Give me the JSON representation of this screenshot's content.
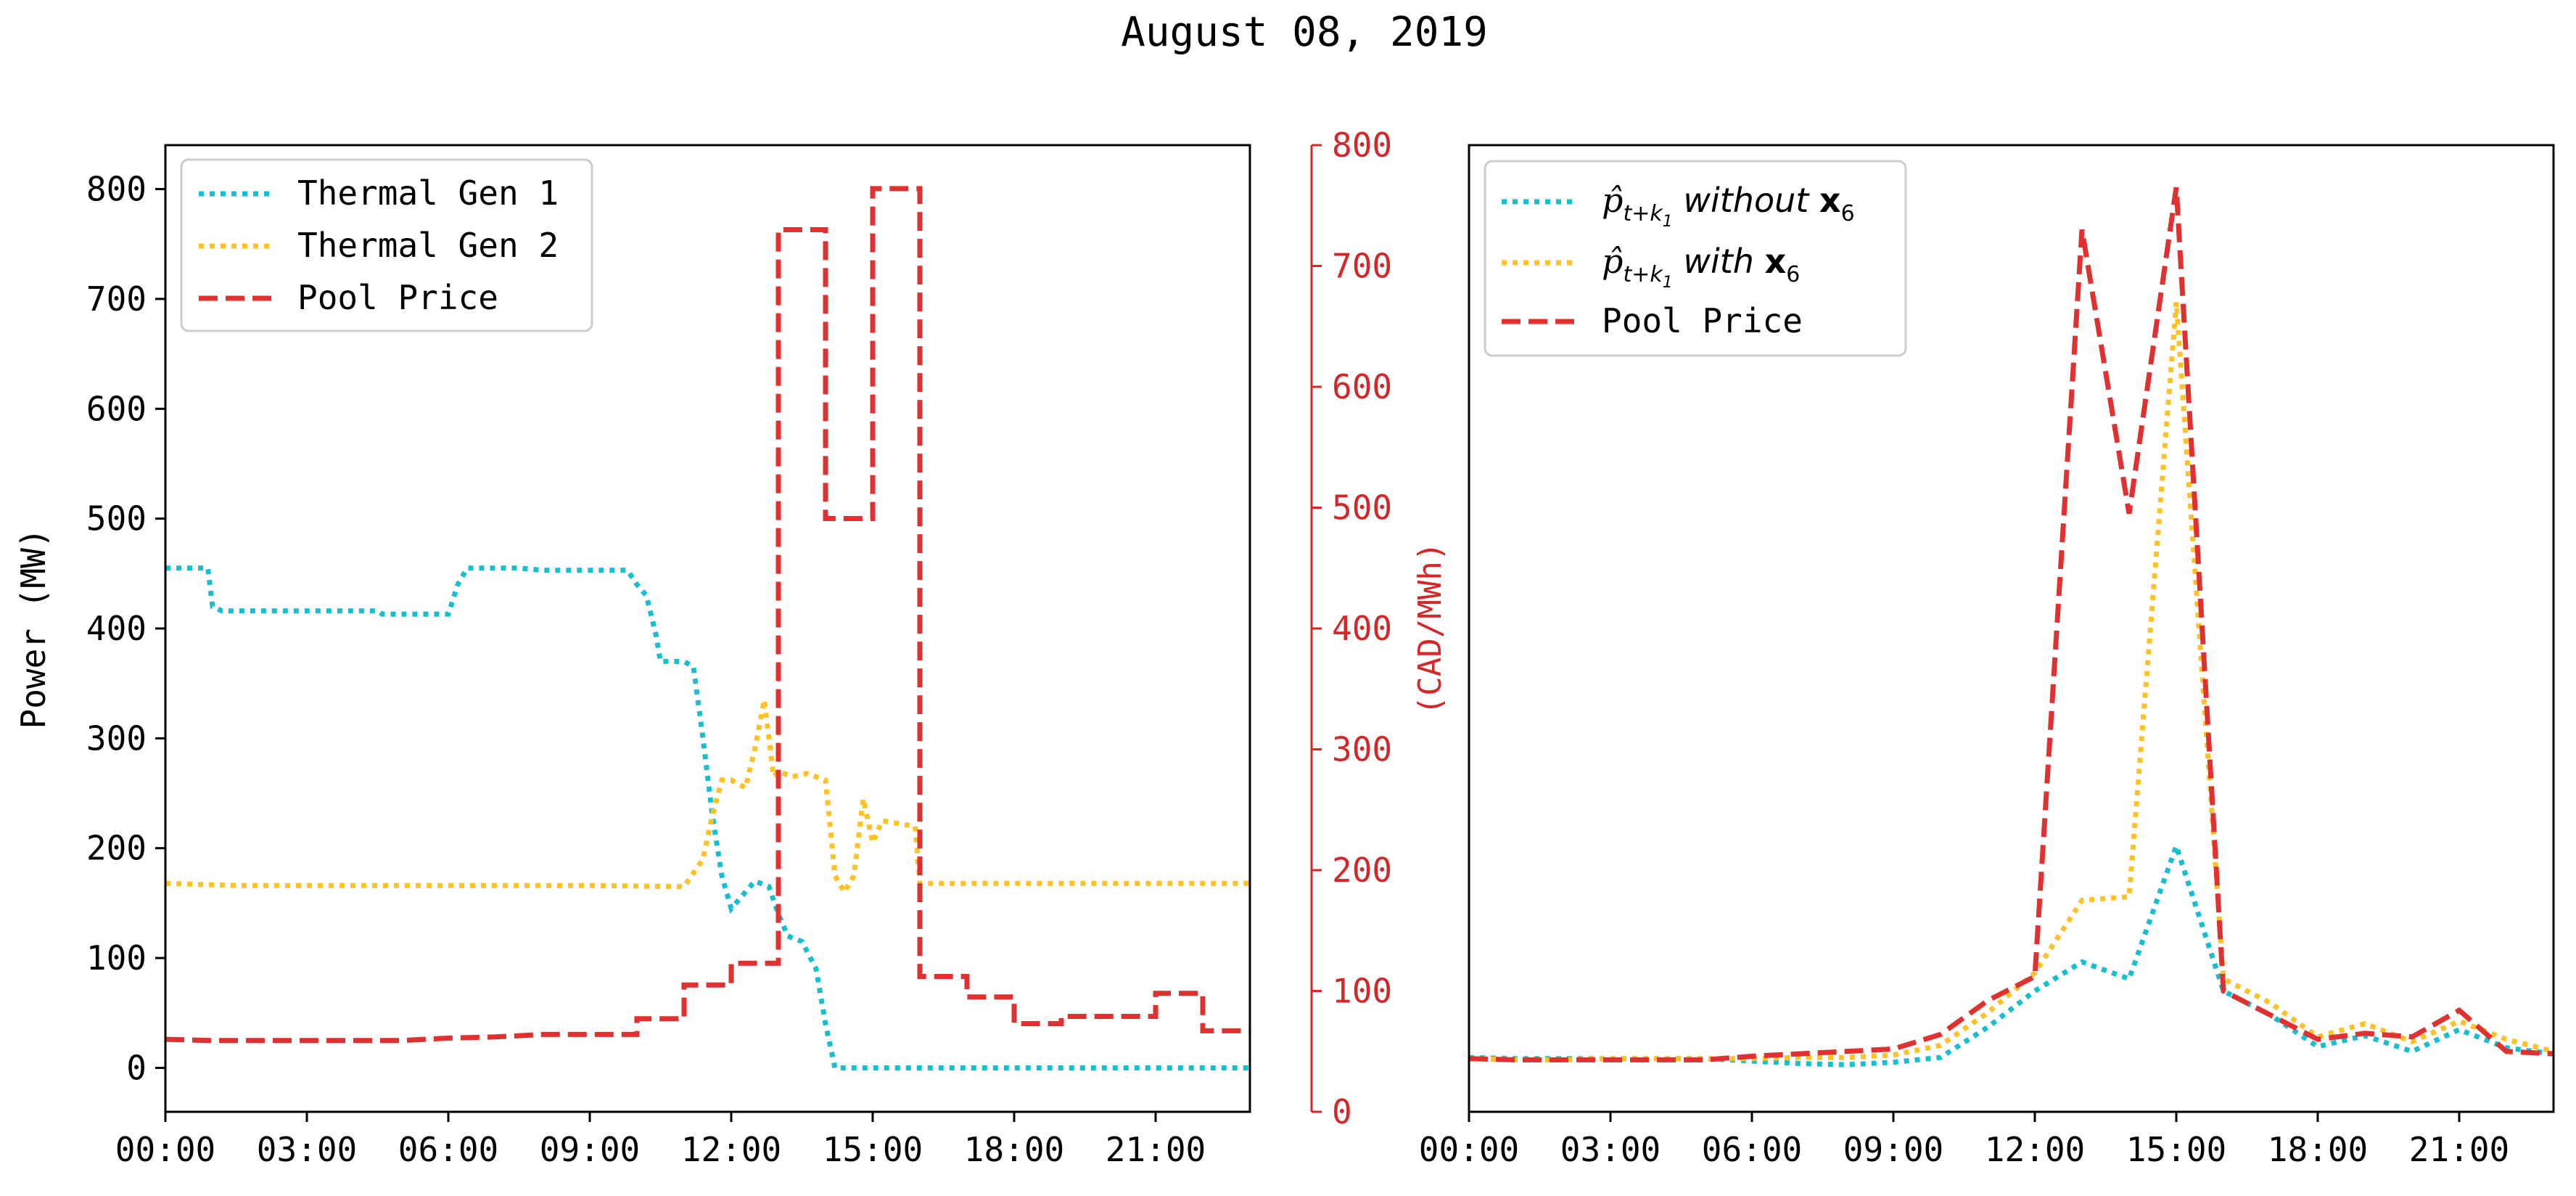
{
  "figure": {
    "title": "August 08, 2019"
  },
  "colors": {
    "teal": "#17becf",
    "gold": "#ffc125",
    "red": "#e03030",
    "axis_red": "#d62728",
    "black": "#000000"
  },
  "chart_data": [
    {
      "type": "line",
      "panel": "left",
      "xlabel": "",
      "ylabel": "Power (MW)",
      "ylabel_right": "(CAD/MWh)",
      "xlim": [
        0,
        23
      ],
      "ylim": [
        -40,
        840
      ],
      "ylim_right": [
        0,
        800
      ],
      "x_ticks": [
        0,
        3,
        6,
        9,
        12,
        15,
        18,
        21
      ],
      "x_tick_labels": [
        "00:00",
        "03:00",
        "06:00",
        "09:00",
        "12:00",
        "15:00",
        "18:00",
        "21:00"
      ],
      "y_ticks": [
        0,
        100,
        200,
        300,
        400,
        500,
        600,
        700,
        800
      ],
      "y_tick_labels": [
        "0",
        "100",
        "200",
        "300",
        "400",
        "500",
        "600",
        "700",
        "800"
      ],
      "y_right_ticks": [
        0,
        100,
        200,
        300,
        400,
        500,
        600,
        700,
        800
      ],
      "y_right_tick_labels": [
        "0",
        "100",
        "200",
        "300",
        "400",
        "500",
        "600",
        "700",
        "800"
      ],
      "legend_position": "top-left",
      "series": [
        {
          "name": "Thermal Gen 1",
          "style": "dotted",
          "color": "#17becf",
          "axis": "left",
          "x": [
            0,
            0.9,
            1.0,
            1.2,
            4.5,
            4.6,
            6.0,
            6.2,
            6.4,
            7.5,
            8.0,
            9.8,
            10.0,
            10.2,
            10.4,
            10.5,
            11.0,
            11.2,
            11.4,
            11.6,
            11.8,
            12.0,
            12.2,
            12.5,
            12.8,
            13.0,
            13.2,
            13.5,
            13.8,
            14.0,
            14.2,
            15.0,
            18.0,
            23.0
          ],
          "values": [
            455,
            455,
            420,
            416,
            416,
            413,
            413,
            440,
            455,
            455,
            453,
            453,
            440,
            430,
            395,
            370,
            370,
            365,
            300,
            230,
            175,
            145,
            155,
            170,
            165,
            140,
            120,
            115,
            90,
            40,
            0,
            0,
            0,
            0
          ]
        },
        {
          "name": "Thermal Gen 2",
          "style": "dotted",
          "color": "#ffc125",
          "axis": "left",
          "x": [
            0,
            1.5,
            3.0,
            5.0,
            7.0,
            9.0,
            11.0,
            11.4,
            11.6,
            11.8,
            12.0,
            12.3,
            12.5,
            12.7,
            12.9,
            13.0,
            13.3,
            13.6,
            14.0,
            14.2,
            14.4,
            14.6,
            14.8,
            15.0,
            15.2,
            15.6,
            15.9,
            16.0,
            18.0,
            21.0,
            23.0
          ],
          "values": [
            168,
            166,
            166,
            166,
            166,
            166,
            165,
            190,
            230,
            262,
            262,
            255,
            290,
            335,
            265,
            270,
            265,
            268,
            262,
            175,
            160,
            175,
            245,
            205,
            225,
            222,
            220,
            168,
            168,
            168,
            168
          ]
        },
        {
          "name": "Pool Price",
          "style": "dashed",
          "color": "#e03030",
          "axis": "right",
          "x": [
            0,
            1,
            2,
            3,
            4,
            5,
            6,
            7,
            8,
            9,
            10,
            10.0,
            11.0,
            11.0,
            12.0,
            12.0,
            13.0,
            13.0,
            14.0,
            14.0,
            15.0,
            15.0,
            16.0,
            16.0,
            17.0,
            17.0,
            18.0,
            18.0,
            19.0,
            19.0,
            21.0,
            21.0,
            22.0,
            22.0,
            23.0
          ],
          "values": [
            60,
            59,
            59,
            59,
            59,
            59,
            61,
            62,
            64,
            64,
            64,
            77,
            77,
            105,
            105,
            123,
            123,
            730,
            730,
            491,
            491,
            764,
            764,
            112,
            112,
            95,
            95,
            73,
            73,
            79,
            79,
            98,
            98,
            67,
            67
          ]
        }
      ]
    },
    {
      "type": "line",
      "panel": "right",
      "xlabel": "",
      "ylabel": "",
      "xlim": [
        0,
        23
      ],
      "ylim": [
        0,
        800
      ],
      "x_ticks": [
        0,
        3,
        6,
        9,
        12,
        15,
        18,
        21
      ],
      "x_tick_labels": [
        "00:00",
        "03:00",
        "06:00",
        "09:00",
        "12:00",
        "15:00",
        "18:00",
        "21:00"
      ],
      "legend_position": "top-left",
      "series": [
        {
          "name": "p̂ t+k1 without x6",
          "legend_math": {
            "var": "p̂",
            "sub": "t+k",
            "subsub": "1",
            "word": "without",
            "bold": "x",
            "boldsub": "6"
          },
          "style": "dotted",
          "color": "#17becf",
          "x": [
            0,
            1,
            2,
            3,
            4,
            5,
            6,
            7,
            8,
            9,
            10,
            11,
            12,
            13,
            14,
            15,
            16,
            17,
            18,
            19,
            20,
            21,
            22,
            23
          ],
          "values": [
            45,
            44,
            44,
            44,
            44,
            44,
            42,
            40,
            39,
            41,
            45,
            70,
            100,
            124,
            110,
            220,
            100,
            80,
            54,
            63,
            50,
            68,
            53,
            48
          ]
        },
        {
          "name": "p̂ t+k1 with x6",
          "legend_math": {
            "var": "p̂",
            "sub": "t+k",
            "subsub": "1",
            "word": "with",
            "bold": "x",
            "boldsub": "6"
          },
          "style": "dotted",
          "color": "#ffc125",
          "x": [
            0,
            1,
            2,
            3,
            4,
            5,
            6,
            7,
            8,
            9,
            10,
            11,
            12,
            13,
            14,
            15,
            16,
            17,
            18,
            19,
            20,
            21,
            22,
            23
          ],
          "values": [
            44,
            43,
            43,
            44,
            44,
            44,
            44,
            45,
            45,
            47,
            55,
            82,
            115,
            175,
            178,
            670,
            110,
            90,
            62,
            73,
            58,
            75,
            60,
            50
          ]
        },
        {
          "name": "Pool Price",
          "style": "dashed",
          "color": "#e03030",
          "x": [
            0,
            1,
            2,
            3,
            4,
            5,
            6,
            7,
            8,
            9,
            10,
            11,
            12,
            13,
            14,
            15,
            16,
            17,
            18,
            19,
            20,
            21,
            22,
            23
          ],
          "values": [
            44,
            43,
            43,
            43,
            43,
            43,
            46,
            48,
            50,
            52,
            64,
            92,
            112,
            730,
            495,
            765,
            100,
            80,
            60,
            65,
            62,
            84,
            50,
            48
          ]
        }
      ]
    }
  ]
}
